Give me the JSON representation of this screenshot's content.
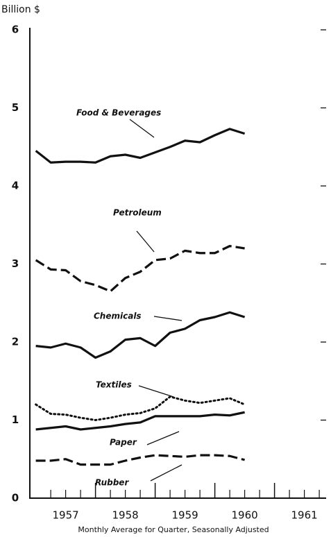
{
  "chart_data": {
    "type": "line",
    "y_label": "Billion $",
    "x_label": "Monthly Average for Quarter, Seasonally Adjusted",
    "x": [
      1957.0,
      1957.25,
      1957.5,
      1957.75,
      1958.0,
      1958.25,
      1958.5,
      1958.75,
      1959.0,
      1959.25,
      1959.5,
      1959.75,
      1960.0,
      1960.25,
      1960.5
    ],
    "series": [
      {
        "name": "Food & Beverages",
        "color": "#111111",
        "style": "solid",
        "values": [
          4.45,
          4.3,
          4.31,
          4.31,
          4.3,
          4.38,
          4.4,
          4.36,
          4.43,
          4.5,
          4.58,
          4.56,
          4.65,
          4.73,
          4.67
        ]
      },
      {
        "name": "Petroleum",
        "color": "#111111",
        "style": "dashed",
        "values": [
          3.05,
          2.93,
          2.92,
          2.78,
          2.73,
          2.65,
          2.82,
          2.9,
          3.05,
          3.07,
          3.17,
          3.14,
          3.14,
          3.23,
          3.2
        ]
      },
      {
        "name": "Chemicals",
        "color": "#111111",
        "style": "solid",
        "values": [
          1.95,
          1.93,
          1.98,
          1.93,
          1.8,
          1.88,
          2.03,
          2.05,
          1.95,
          2.12,
          2.17,
          2.28,
          2.32,
          2.38,
          2.32
        ]
      },
      {
        "name": "Textiles",
        "color": "#111111",
        "style": "dotted",
        "values": [
          1.2,
          1.08,
          1.07,
          1.03,
          1.0,
          1.03,
          1.07,
          1.09,
          1.15,
          1.3,
          1.25,
          1.22,
          1.25,
          1.28,
          1.2
        ]
      },
      {
        "name": "Paper",
        "color": "#111111",
        "style": "solid",
        "values": [
          0.88,
          0.9,
          0.92,
          0.88,
          0.9,
          0.92,
          0.95,
          0.97,
          1.05,
          1.05,
          1.05,
          1.05,
          1.07,
          1.06,
          1.1
        ]
      },
      {
        "name": "Rubber",
        "color": "#111111",
        "style": "dashed",
        "values": [
          0.48,
          0.48,
          0.5,
          0.43,
          0.43,
          0.43,
          0.48,
          0.52,
          0.55,
          0.54,
          0.53,
          0.55,
          0.55,
          0.54,
          0.49
        ]
      }
    ],
    "xlim": [
      1956.9,
      1961.9
    ],
    "xticks": [
      {
        "value": 1957.5,
        "label": "1957"
      },
      {
        "value": 1958.5,
        "label": "1958"
      },
      {
        "value": 1959.5,
        "label": "1959"
      },
      {
        "value": 1960.5,
        "label": "1960"
      },
      {
        "value": 1961.5,
        "label": "1961"
      }
    ],
    "x_year_ticks": [
      1958,
      1959,
      1960,
      1961
    ],
    "x_quarter_ticks": [
      1957.25,
      1957.5,
      1957.75,
      1958.25,
      1958.5,
      1958.75,
      1959.25,
      1959.5,
      1959.75,
      1960.25,
      1960.5,
      1960.75,
      1961.25,
      1961.5,
      1961.75
    ],
    "ylim": [
      0,
      6
    ],
    "yticks": [
      0,
      1,
      2,
      3,
      4,
      5,
      6
    ],
    "grid": false
  }
}
